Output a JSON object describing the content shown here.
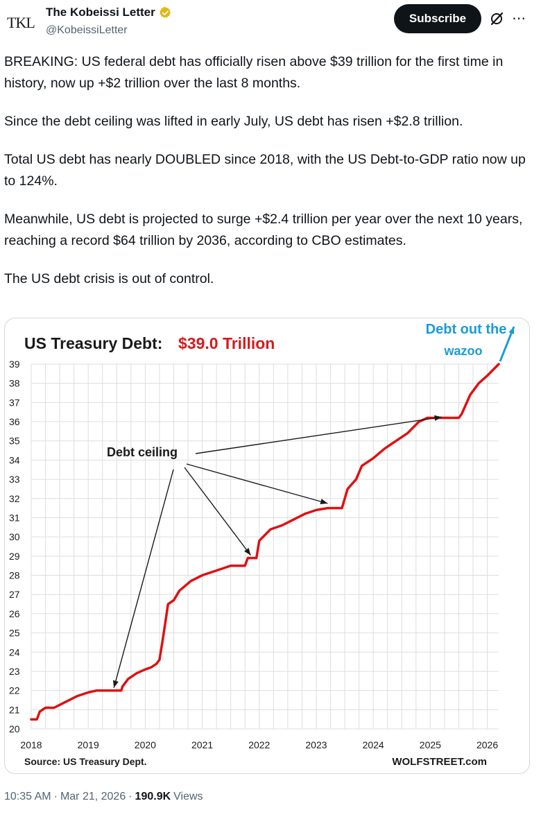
{
  "author": {
    "avatar_text": "TKL",
    "display_name": "The Kobeissi Letter",
    "handle": "@KobeissiLetter",
    "verified_color": "#e2b719"
  },
  "header": {
    "subscribe_label": "Subscribe",
    "grok_icon": "grok-icon",
    "more_icon": "more-icon"
  },
  "tweet": {
    "paragraphs": [
      "BREAKING: US federal debt has officially risen above $39 trillion for the first time in history, now up +$2 trillion over the last 8 months.",
      "Since the debt ceiling was lifted in early July, US debt has risen +$2.8 trillion.",
      "Total US debt has nearly DOUBLED since 2018, with the US Debt-to-GDP ratio now up to 124%.",
      "Meanwhile, US debt is projected to surge +$2.4 trillion per year over the next 10 years, reaching a record $64 trillion by 2036, according to CBO estimates.",
      "The US debt crisis is out of control."
    ]
  },
  "footer": {
    "time": "10:35 AM",
    "sep1": "·",
    "date": "Mar 21, 2026",
    "sep2": "·",
    "views_count": "190.9K",
    "views_label": "Views"
  },
  "chart_data": {
    "type": "line",
    "title_prefix": "US Treasury Debt:",
    "title_value": "$39.0 Trillion",
    "title_value_color": "#d7191c",
    "line_color": "#e01010",
    "annotation_color": "#1a9bd7",
    "ylim": [
      20,
      39
    ],
    "yticks": [
      20,
      21,
      22,
      23,
      24,
      25,
      26,
      27,
      28,
      29,
      30,
      31,
      32,
      33,
      34,
      35,
      36,
      37,
      38,
      39
    ],
    "xlim": [
      2018,
      2026.2
    ],
    "xticks": [
      2018,
      2019,
      2020,
      2021,
      2022,
      2023,
      2024,
      2025,
      2026
    ],
    "series": [
      {
        "name": "US Treasury Debt ($ trillion)",
        "x": [
          2018.0,
          2018.1,
          2018.15,
          2018.25,
          2018.4,
          2018.6,
          2018.8,
          2019.0,
          2019.15,
          2019.3,
          2019.4,
          2019.58,
          2019.6,
          2019.7,
          2019.85,
          2020.0,
          2020.1,
          2020.2,
          2020.25,
          2020.3,
          2020.35,
          2020.4,
          2020.5,
          2020.6,
          2020.8,
          2021.0,
          2021.2,
          2021.4,
          2021.5,
          2021.6,
          2021.75,
          2021.8,
          2021.95,
          2022.0,
          2022.2,
          2022.4,
          2022.6,
          2022.8,
          2023.0,
          2023.2,
          2023.4,
          2023.45,
          2023.55,
          2023.7,
          2023.8,
          2024.0,
          2024.2,
          2024.4,
          2024.6,
          2024.8,
          2024.95,
          2025.0,
          2025.1,
          2025.3,
          2025.5,
          2025.55,
          2025.7,
          2025.85,
          2026.0,
          2026.2
        ],
        "values": [
          20.5,
          20.5,
          20.9,
          21.1,
          21.1,
          21.4,
          21.7,
          21.9,
          22.0,
          22.0,
          22.0,
          22.0,
          22.2,
          22.6,
          22.9,
          23.1,
          23.2,
          23.4,
          23.6,
          24.5,
          25.5,
          26.5,
          26.7,
          27.2,
          27.7,
          28.0,
          28.2,
          28.4,
          28.5,
          28.5,
          28.5,
          28.9,
          28.9,
          29.8,
          30.4,
          30.6,
          30.9,
          31.2,
          31.4,
          31.5,
          31.5,
          31.5,
          32.5,
          33.0,
          33.7,
          34.1,
          34.6,
          35.0,
          35.4,
          36.0,
          36.2,
          36.2,
          36.2,
          36.2,
          36.2,
          36.4,
          37.4,
          38.0,
          38.4,
          39.0
        ]
      }
    ],
    "annotations": {
      "debt_ceiling_label": "Debt ceiling",
      "wazoo_line1": "Debt out the",
      "wazoo_line2": "wazoo",
      "arrow_targets": [
        {
          "x": 2019.45,
          "y": 22.0
        },
        {
          "x": 2021.85,
          "y": 28.9
        },
        {
          "x": 2023.2,
          "y": 31.6
        },
        {
          "x": 2025.2,
          "y": 36.1
        }
      ]
    },
    "source": "Source: US Treasury Dept.",
    "watermark": "WOLFSTREET.com"
  }
}
